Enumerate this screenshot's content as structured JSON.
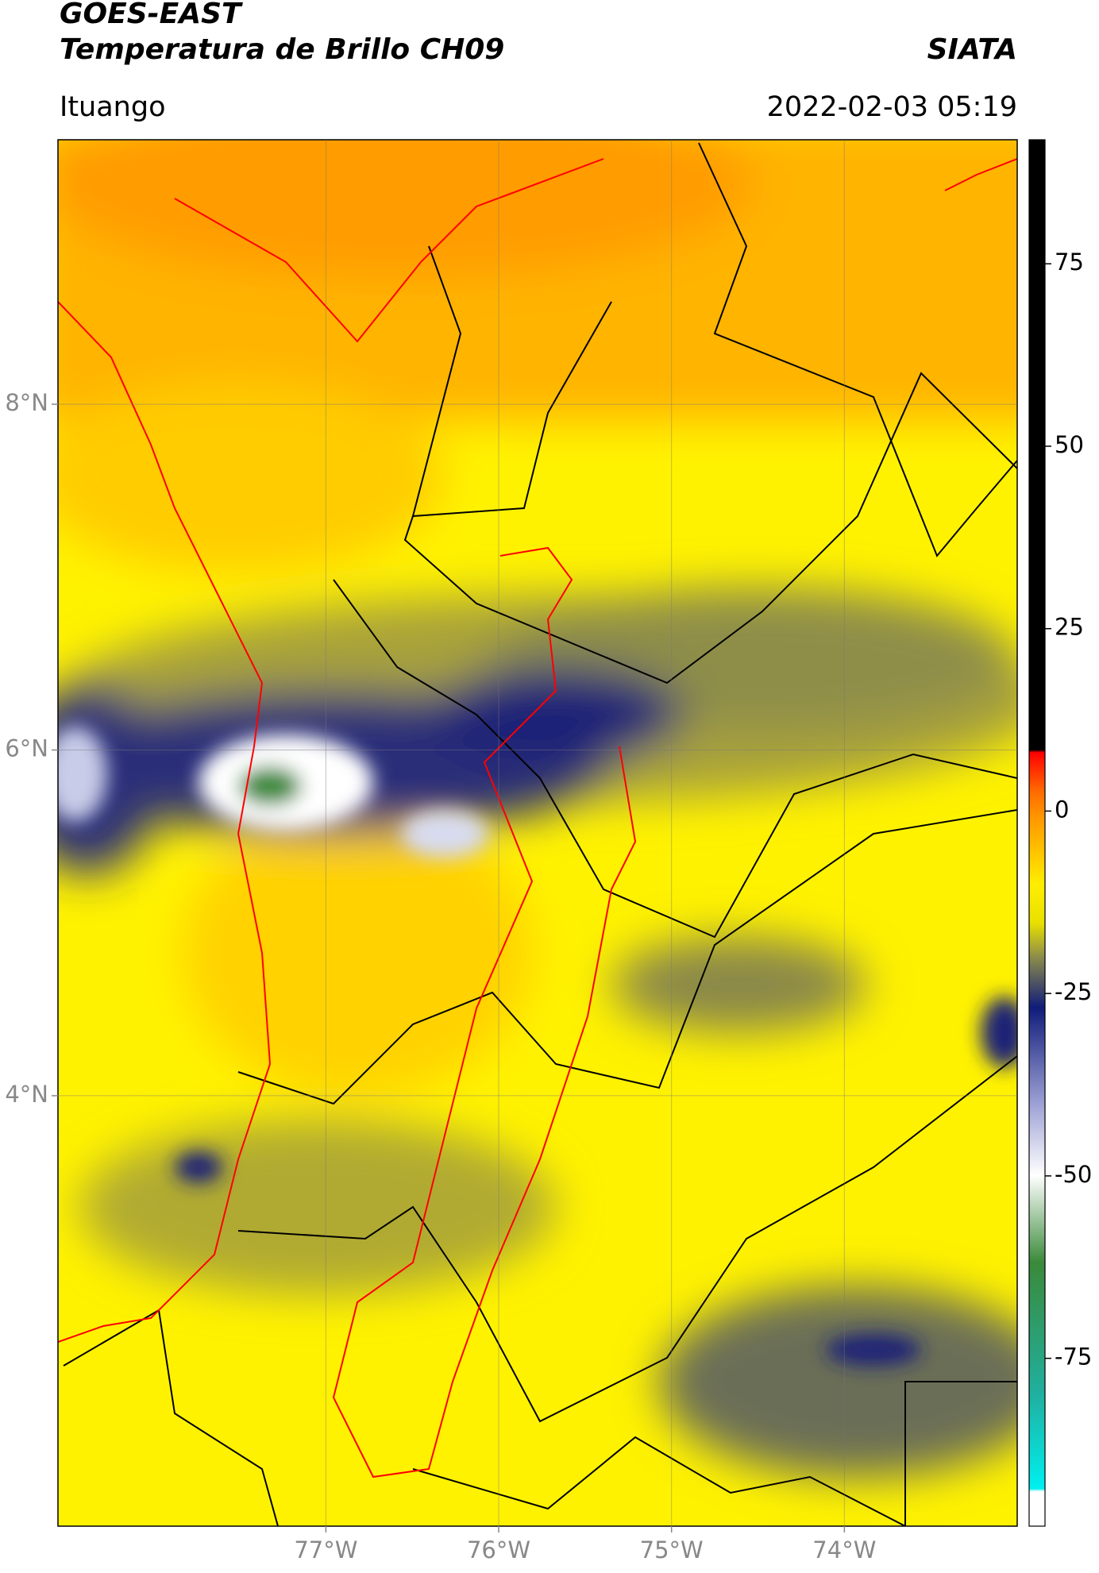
{
  "header": {
    "title": "GOES-EAST",
    "subtitle": "Temperatura de Brillo CH09",
    "source": "SIATA",
    "location": "Ituango",
    "datetime": "2022-02-03 05:19"
  },
  "map": {
    "xlim": [
      -78.55,
      -73.0
    ],
    "ylim": [
      1.51,
      9.53
    ],
    "xticks": [
      {
        "value": -77,
        "label": "77°W"
      },
      {
        "value": -76,
        "label": "76°W"
      },
      {
        "value": -75,
        "label": "75°W"
      },
      {
        "value": -74,
        "label": "74°W"
      }
    ],
    "yticks": [
      {
        "value": 8,
        "label": "8°N"
      },
      {
        "value": 6,
        "label": "6°N"
      },
      {
        "value": 4,
        "label": "4°N"
      }
    ],
    "grid": true
  },
  "colorbar": {
    "ylim": [
      -98,
      92
    ],
    "yticks": [
      75,
      50,
      25,
      0,
      -25,
      -50,
      -75
    ]
  }
}
